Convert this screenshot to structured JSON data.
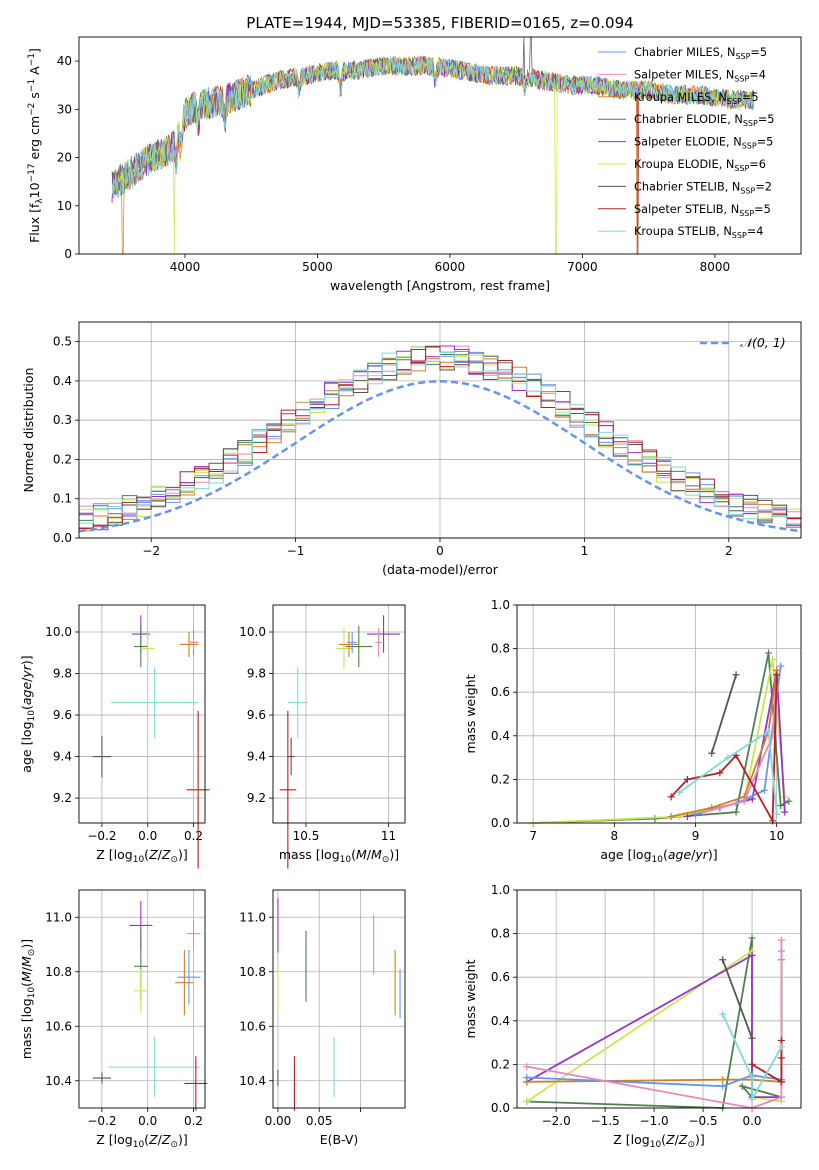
{
  "figure": {
    "title": "PLATE=1944, MJD=53385, FIBERID=0165, z=0.094"
  },
  "colors": {
    "chabrier_miles": "#6495ed",
    "salpeter_miles": "#ff7f0e",
    "kroupa_miles": "#d08020",
    "chabrier_elodie": "#4f7f4f",
    "salpeter_elodie": "#9932cc",
    "kroupa_elodie": "#c8e650",
    "chabrier_stelib": "#555555",
    "salpeter_stelib": "#b22222",
    "kroupa_stelib": "#80d8d8",
    "pink": "#e887b8"
  },
  "chart_data": [
    {
      "id": "spectrum",
      "type": "line",
      "xlabel": "wavelength [Angstrom, rest frame]",
      "ylabel": "Flux [f_λ 10^-17 erg cm^-2 s^-1 A^-1]",
      "xlim": [
        3200,
        8650
      ],
      "ylim": [
        0,
        45
      ],
      "xticks": [
        4000,
        5000,
        6000,
        7000,
        8000
      ],
      "yticks": [
        0,
        10,
        20,
        30,
        40
      ],
      "legend_position": "top-right",
      "legend": [
        {
          "label": "Chabrier MILES, N",
          "sub": "SSP",
          "tail": "=5",
          "color": "#6495ed"
        },
        {
          "label": "Salpeter MILES, N",
          "sub": "SSP",
          "tail": "=4",
          "color": "#e887b8"
        },
        {
          "label": "Kroupa MILES, N",
          "sub": "SSP",
          "tail": "=5",
          "color": "#d08020"
        },
        {
          "label": "Chabrier ELODIE, N",
          "sub": "SSP",
          "tail": "=5",
          "color": "#4f7f4f"
        },
        {
          "label": "Salpeter ELODIE, N",
          "sub": "SSP",
          "tail": "=5",
          "color": "#9932cc"
        },
        {
          "label": "Kroupa ELODIE, N",
          "sub": "SSP",
          "tail": "=6",
          "color": "#c8e650"
        },
        {
          "label": "Chabrier STELIB, N",
          "sub": "SSP",
          "tail": "=2",
          "color": "#555555"
        },
        {
          "label": "Salpeter STELIB, N",
          "sub": "SSP",
          "tail": "=5",
          "color": "#b22222"
        },
        {
          "label": "Kroupa STELIB, N",
          "sub": "SSP",
          "tail": "=4",
          "color": "#80d8d8"
        }
      ],
      "continuum": {
        "x": [
          3450,
          3600,
          3750,
          3900,
          4000,
          4100,
          4300,
          4500,
          4700,
          4900,
          5100,
          5300,
          5500,
          5700,
          5900,
          6100,
          6300,
          6500,
          6700,
          6900,
          7100,
          7300,
          7500,
          7700,
          7900,
          8100,
          8300
        ],
        "y": [
          14,
          17,
          20,
          22,
          29,
          31,
          32,
          34,
          36,
          37,
          38,
          38,
          39,
          39,
          39,
          38,
          37,
          37,
          36,
          35,
          35,
          34,
          34,
          33,
          33,
          32,
          32
        ]
      }
    },
    {
      "id": "residuals",
      "type": "histogram",
      "xlabel": "(data-model)/error",
      "ylabel": "Normed distribution",
      "xlim": [
        -2.5,
        2.5
      ],
      "ylim": [
        0,
        0.55
      ],
      "xticks": [
        -2,
        -1,
        0,
        1,
        2
      ],
      "yticks": [
        0.0,
        0.1,
        0.2,
        0.3,
        0.4,
        0.5
      ],
      "legend": "𝒩(0, 1)",
      "legend_position": "top-right",
      "reference_curve": "normal(0,1)"
    },
    {
      "id": "age_vs_Z",
      "type": "scatter",
      "xlabel": "Z [log10(Z/Z⊙)]",
      "ylabel": "age [log10(age/yr)]",
      "xlim": [
        -0.3,
        0.25
      ],
      "ylim": [
        9.08,
        10.13
      ],
      "xticks": [
        -0.2,
        0.0,
        0.2
      ],
      "yticks": [
        9.2,
        9.4,
        9.6,
        9.8,
        10.0
      ],
      "points": [
        {
          "x": -0.03,
          "y": 9.99,
          "xerr": 0.04,
          "yerr": 0.09,
          "color": "#9932cc"
        },
        {
          "x": -0.03,
          "y": 9.93,
          "xerr": 0.03,
          "yerr": 0.1,
          "color": "#4f7f4f"
        },
        {
          "x": 0.0,
          "y": 9.92,
          "xerr": 0.03,
          "yerr": 0.08,
          "color": "#c8e650"
        },
        {
          "x": 0.18,
          "y": 9.94,
          "xerr": 0.04,
          "yerr": 0.06,
          "color": "#d08020"
        },
        {
          "x": 0.2,
          "y": 9.95,
          "xerr": 0.02,
          "yerr": 0.06,
          "color": "#6495ed"
        },
        {
          "x": 0.2,
          "y": 9.95,
          "xerr": 0.02,
          "yerr": 0.04,
          "color": "#e887b8"
        },
        {
          "x": 0.03,
          "y": 9.66,
          "xerr": 0.19,
          "yerr": 0.17,
          "color": "#80d8d8"
        },
        {
          "x": -0.2,
          "y": 9.4,
          "xerr": 0.04,
          "yerr": 0.1,
          "color": "#555555"
        },
        {
          "x": 0.22,
          "y": 9.24,
          "xerr": 0.05,
          "yerr": 0.38,
          "color": "#b22222"
        }
      ]
    },
    {
      "id": "age_vs_mass",
      "type": "scatter",
      "xlabel": "mass [log10(M/M⊙)]",
      "ylabel": "",
      "xlim": [
        10.3,
        11.1
      ],
      "ylim": [
        9.08,
        10.13
      ],
      "xticks": [
        10.5,
        11.0
      ],
      "yticks": [
        9.2,
        9.4,
        9.6,
        9.8,
        10.0
      ],
      "points": [
        {
          "x": 10.97,
          "y": 9.99,
          "xerr": 0.1,
          "yerr": 0.09,
          "color": "#9932cc"
        },
        {
          "x": 10.82,
          "y": 9.93,
          "xerr": 0.08,
          "yerr": 0.1,
          "color": "#4f7f4f"
        },
        {
          "x": 10.73,
          "y": 9.92,
          "xerr": 0.05,
          "yerr": 0.1,
          "color": "#c8e650"
        },
        {
          "x": 10.76,
          "y": 9.94,
          "xerr": 0.06,
          "yerr": 0.06,
          "color": "#d08020"
        },
        {
          "x": 10.78,
          "y": 9.95,
          "xerr": 0.03,
          "yerr": 0.05,
          "color": "#6495ed"
        },
        {
          "x": 10.94,
          "y": 9.95,
          "xerr": 0.02,
          "yerr": 0.07,
          "color": "#e887b8"
        },
        {
          "x": 10.45,
          "y": 9.66,
          "xerr": 0.06,
          "yerr": 0.17,
          "color": "#80d8d8"
        },
        {
          "x": 10.41,
          "y": 9.4,
          "xerr": 0.02,
          "yerr": 0.09,
          "color": "#555555"
        },
        {
          "x": 10.39,
          "y": 9.24,
          "xerr": 0.05,
          "yerr": 0.38,
          "color": "#b22222"
        }
      ]
    },
    {
      "id": "mass_weight_vs_age",
      "type": "line",
      "xlabel": "age [log10(age/yr)]",
      "ylabel": "mass weight",
      "xlim": [
        6.8,
        10.3
      ],
      "ylim": [
        0,
        1
      ],
      "xticks": [
        7,
        8,
        9,
        10
      ],
      "yticks": [
        0.0,
        0.2,
        0.4,
        0.6,
        0.8,
        1.0
      ],
      "series": [
        {
          "color": "#4f7f4f",
          "x": [
            7.0,
            8.5,
            9.5,
            9.9,
            10.05,
            10.15
          ],
          "y": [
            0.0,
            0.02,
            0.05,
            0.78,
            0.08,
            0.1
          ]
        },
        {
          "color": "#c8e650",
          "x": [
            7.0,
            8.8,
            9.6,
            9.95,
            10.1
          ],
          "y": [
            0.0,
            0.03,
            0.1,
            0.75,
            0.12
          ]
        },
        {
          "color": "#9932cc",
          "x": [
            8.9,
            9.3,
            9.7,
            10.0,
            10.1
          ],
          "y": [
            0.03,
            0.07,
            0.11,
            0.7,
            0.05
          ]
        },
        {
          "color": "#d08020",
          "x": [
            8.7,
            9.2,
            9.6,
            9.9,
            10.0
          ],
          "y": [
            0.03,
            0.07,
            0.12,
            0.42,
            0.7
          ]
        },
        {
          "color": "#6495ed",
          "x": [
            9.0,
            9.5,
            9.85,
            10.05
          ],
          "y": [
            0.04,
            0.09,
            0.15,
            0.72
          ]
        },
        {
          "color": "#e887b8",
          "x": [
            9.1,
            9.6,
            9.95,
            10.0
          ],
          "y": [
            0.05,
            0.1,
            0.4,
            0.68
          ]
        },
        {
          "color": "#555555",
          "x": [
            9.2,
            9.5
          ],
          "y": [
            0.32,
            0.68
          ]
        },
        {
          "color": "#b22222",
          "x": [
            8.7,
            8.9,
            9.3,
            9.5,
            9.95,
            10.0
          ],
          "y": [
            0.12,
            0.2,
            0.23,
            0.31,
            0.01,
            0.68
          ]
        },
        {
          "color": "#80d8d8",
          "x": [
            8.8,
            9.4,
            9.9,
            10.0
          ],
          "y": [
            0.14,
            0.3,
            0.42,
            0.04
          ]
        }
      ]
    },
    {
      "id": "mass_vs_Z",
      "type": "scatter",
      "xlabel": "Z [log10(Z/Z⊙)]",
      "ylabel": "mass [log10(M/M⊙)]",
      "xlim": [
        -0.3,
        0.25
      ],
      "ylim": [
        10.3,
        11.1
      ],
      "xticks": [
        -0.2,
        0.0,
        0.2
      ],
      "yticks": [
        10.4,
        10.6,
        10.8,
        11.0
      ],
      "points": [
        {
          "x": -0.03,
          "y": 10.97,
          "xerr": 0.05,
          "yerr": 0.09,
          "color": "#9932cc"
        },
        {
          "x": -0.03,
          "y": 10.82,
          "xerr": 0.03,
          "yerr": 0.13,
          "color": "#4f7f4f"
        },
        {
          "x": -0.03,
          "y": 10.73,
          "xerr": 0.03,
          "yerr": 0.08,
          "color": "#c8e650"
        },
        {
          "x": 0.16,
          "y": 10.76,
          "xerr": 0.04,
          "yerr": 0.12,
          "color": "#d08020"
        },
        {
          "x": 0.18,
          "y": 10.78,
          "xerr": 0.05,
          "yerr": 0.1,
          "color": "#6495ed"
        },
        {
          "x": 0.2,
          "y": 10.94,
          "xerr": 0.03,
          "yerr": 0.05,
          "color": "#e887b8"
        },
        {
          "x": 0.03,
          "y": 10.45,
          "xerr": 0.2,
          "yerr": 0.11,
          "color": "#80d8d8"
        },
        {
          "x": -0.2,
          "y": 10.41,
          "xerr": 0.04,
          "yerr": 0.02,
          "color": "#555555"
        },
        {
          "x": 0.21,
          "y": 10.39,
          "xerr": 0.05,
          "yerr": 0.1,
          "color": "#b22222"
        }
      ]
    },
    {
      "id": "mass_vs_ebv",
      "type": "scatter",
      "xlabel": "E(B-V)",
      "ylabel": "",
      "xlim": [
        -0.003,
        0.077
      ],
      "ylim": [
        10.3,
        11.1
      ],
      "xticks": [
        0.0,
        0.025,
        0.05
      ],
      "xticklabels": [
        "0.00",
        "0.05"
      ],
      "yticks": [
        10.4,
        10.6,
        10.8,
        11.0
      ],
      "points": [
        {
          "x": 0.0,
          "y": 10.97,
          "xerr": 0,
          "yerr": 0.1,
          "color": "#9932cc"
        },
        {
          "x": 0.017,
          "y": 10.82,
          "xerr": 0,
          "yerr": 0.13,
          "color": "#4f7f4f"
        },
        {
          "x": 0.0,
          "y": 10.73,
          "xerr": 0,
          "yerr": 0.08,
          "color": "#c8e650"
        },
        {
          "x": 0.071,
          "y": 10.76,
          "xerr": 0,
          "yerr": 0.12,
          "color": "#d08020"
        },
        {
          "x": 0.074,
          "y": 10.72,
          "xerr": 0,
          "yerr": 0.09,
          "color": "#6495ed"
        },
        {
          "x": 0.058,
          "y": 10.9,
          "xerr": 0,
          "yerr": 0.11,
          "color": "#e887b8"
        },
        {
          "x": 0.034,
          "y": 10.45,
          "xerr": 0,
          "yerr": 0.11,
          "color": "#80d8d8"
        },
        {
          "x": 0.0,
          "y": 10.41,
          "xerr": 0,
          "yerr": 0.03,
          "color": "#555555"
        },
        {
          "x": 0.01,
          "y": 10.39,
          "xerr": 0,
          "yerr": 0.1,
          "color": "#b22222"
        }
      ]
    },
    {
      "id": "mass_weight_vs_Z",
      "type": "line",
      "xlabel": "Z [log10(Z/Z⊙)]",
      "ylabel": "mass weight",
      "xlim": [
        -2.4,
        0.5
      ],
      "ylim": [
        0,
        1
      ],
      "xticks": [
        -2.0,
        -1.5,
        -1.0,
        -0.5,
        0.0
      ],
      "yticks": [
        0.0,
        0.2,
        0.4,
        0.6,
        0.8,
        1.0
      ],
      "series": [
        {
          "color": "#4f7f4f",
          "x": [
            -2.3,
            -0.3,
            0.0,
            0.0,
            -0.1,
            0.3
          ],
          "y": [
            0.03,
            0.0,
            0.78,
            0.05,
            0.1,
            0.05
          ]
        },
        {
          "color": "#c8e650",
          "x": [
            -2.3,
            0.0,
            0.0,
            0.3
          ],
          "y": [
            0.03,
            0.72,
            0.05,
            0.03
          ]
        },
        {
          "color": "#9932cc",
          "x": [
            -2.3,
            0.0,
            0.0,
            0.3
          ],
          "y": [
            0.12,
            0.7,
            0.05,
            0.05
          ]
        },
        {
          "color": "#d08020",
          "x": [
            -2.3,
            -0.3,
            0.0,
            0.3,
            0.3
          ],
          "y": [
            0.12,
            0.13,
            0.13,
            0.12,
            0.68
          ]
        },
        {
          "color": "#6495ed",
          "x": [
            -2.3,
            -0.3,
            0.0,
            0.3,
            0.3
          ],
          "y": [
            0.14,
            0.1,
            0.15,
            0.13,
            0.72
          ]
        },
        {
          "color": "#e887b8",
          "x": [
            -2.3,
            0.0,
            0.3,
            0.3
          ],
          "y": [
            0.19,
            0.0,
            0.05,
            0.77
          ]
        },
        {
          "color": "#555555",
          "x": [
            -0.3,
            0.0
          ],
          "y": [
            0.68,
            0.32
          ]
        },
        {
          "color": "#b22222",
          "x": [
            0.0,
            0.3,
            0.3,
            0.3,
            0.3
          ],
          "y": [
            0.2,
            0.12,
            0.23,
            0.31,
            0.12
          ]
        },
        {
          "color": "#80d8d8",
          "x": [
            -0.3,
            0.0,
            0.0,
            0.3
          ],
          "y": [
            0.43,
            0.14,
            0.04,
            0.28
          ]
        }
      ]
    }
  ]
}
